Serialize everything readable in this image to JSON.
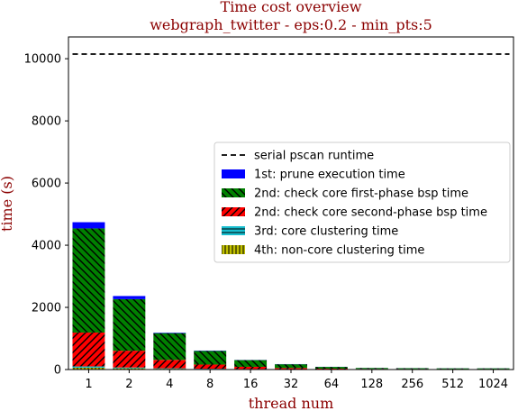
{
  "chart_data": {
    "type": "bar",
    "title": "Time cost overview",
    "subtitle": "webgraph_twitter - eps:0.2 - min_pts:5",
    "xlabel": "thread num",
    "ylabel": "time (s)",
    "ylim": [
      0,
      10700
    ],
    "yticks": [
      0,
      2000,
      4000,
      6000,
      8000,
      10000
    ],
    "categories": [
      "1",
      "2",
      "4",
      "8",
      "16",
      "32",
      "64",
      "128",
      "256",
      "512",
      "1024"
    ],
    "serial_runtime": {
      "name": "serial pscan runtime",
      "value": 10150,
      "color": "#000000"
    },
    "series": [
      {
        "name": "4th: non-core clustering time",
        "color": "#bfbf00",
        "hatch": "vertical",
        "values": [
          60,
          40,
          25,
          15,
          10,
          8,
          6,
          5,
          5,
          5,
          5
        ]
      },
      {
        "name": "3rd: core clustering time",
        "color": "#17becf",
        "hatch": "horizontal",
        "values": [
          40,
          25,
          15,
          10,
          8,
          5,
          4,
          3,
          3,
          3,
          3
        ]
      },
      {
        "name": "2nd: check core second-phase bsp time",
        "color": "#ff0000",
        "hatch": "diagonal-up",
        "values": [
          1090,
          540,
          270,
          135,
          70,
          37,
          20,
          12,
          10,
          9,
          9
        ]
      },
      {
        "name": "2nd: check core first-phase bsp time",
        "color": "#008000",
        "hatch": "diagonal-down",
        "values": [
          3350,
          1660,
          860,
          440,
          215,
          120,
          55,
          30,
          25,
          22,
          22
        ]
      },
      {
        "name": "1st: prune execution time",
        "color": "#0000ff",
        "hatch": "none",
        "values": [
          200,
          100,
          15,
          10,
          5,
          5,
          3,
          2,
          2,
          2,
          2
        ]
      }
    ],
    "legend": {
      "position": "center-right",
      "order": [
        "serial pscan runtime",
        "1st: prune execution time",
        "2nd: check core first-phase bsp time",
        "2nd: check core second-phase bsp time",
        "3rd: core clustering time",
        "4th: non-core clustering time"
      ]
    },
    "grid": false
  }
}
